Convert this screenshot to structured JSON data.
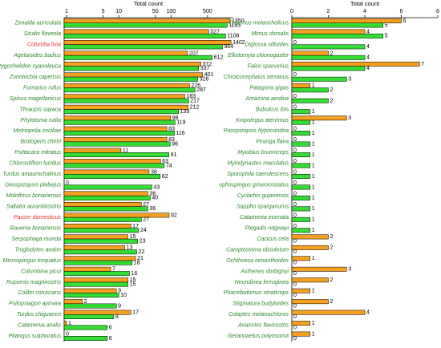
{
  "chart_data": [
    {
      "type": "bar",
      "orientation": "horizontal",
      "log_scale": true,
      "xlabel": "Total count",
      "xlim": [
        0.9,
        1500
      ],
      "xticks": [
        1,
        5,
        10,
        50,
        100,
        500
      ],
      "categories": [
        "Zenaida auriculata",
        "Sicalis flaveola",
        "Columba livia",
        "Agelaioides badius",
        "Pygochelidon cyanoleuca",
        "Zonotrichia capensis",
        "Furnarius rufus",
        "Spinus magellanicus",
        "Thraupis sayaca",
        "Phytotoma rutila",
        "Metriopelia ceciliae",
        "Brotogeris chiriri",
        "Psittacara mitratus",
        "Chlorostilbon lucidus",
        "Turdus amaurochalinus",
        "Geospizopsis plebejus",
        "Molothrus bonariensis",
        "Saltator aurantiirostris",
        "Passer domesticus",
        "Rauenia bonariensis",
        "Serpophaga munda",
        "Troglodytes aedon",
        "Microspingus torquatus",
        "Columbina picui",
        "Rupornis magnirostris",
        "Colibri coruscans",
        "Psilopsiagon aymara",
        "Turdus chiguanco",
        "Catamenia analis",
        "Pitangus sulphuratus"
      ],
      "label_colors": [
        "#2a8a2a",
        "#2a8a2a",
        "#e8302a",
        "#2a8a2a",
        "#2a8a2a",
        "#2a8a2a",
        "#2a8a2a",
        "#2a8a2a",
        "#2a8a2a",
        "#2a8a2a",
        "#2a8a2a",
        "#2a8a2a",
        "#2a8a2a",
        "#2a8a2a",
        "#2a8a2a",
        "#2a8a2a",
        "#2a8a2a",
        "#2a8a2a",
        "#e8302a",
        "#2a8a2a",
        "#2a8a2a",
        "#2a8a2a",
        "#2a8a2a",
        "#2a8a2a",
        "#2a8a2a",
        "#2a8a2a",
        "#2a8a2a",
        "#2a8a2a",
        "#2a8a2a",
        "#2a8a2a"
      ],
      "series": [
        {
          "color": "#f5a020",
          "values": [
            1350,
            527,
            1402,
            207,
            372,
            401,
            226,
            183,
            212,
            98,
            83,
            83,
            11,
            63,
            38,
            0,
            36,
            27,
            92,
            17,
            15,
            13,
            21,
            7,
            15,
            9,
            2,
            17,
            1,
            0
          ]
        },
        {
          "color": "#33dd33",
          "values": [
            1183,
            1106,
            964,
            612,
            337,
            326,
            287,
            217,
            139,
            119,
            116,
            96,
            91,
            74,
            62,
            43,
            40,
            36,
            27,
            24,
            23,
            22,
            18,
            16,
            15,
            10,
            9,
            8,
            6,
            6
          ]
        }
      ]
    },
    {
      "type": "bar",
      "orientation": "horizontal",
      "log_scale": false,
      "xlabel": "Total count",
      "xlim": [
        0,
        8
      ],
      "xticks": [
        0,
        2,
        4,
        6,
        8
      ],
      "categories": [
        "Tyrannus melancholicus",
        "Mimus dorsalis",
        "Diglossa sittoides",
        "Elliotomyia chionogaster",
        "Falco sparverius",
        "Chroicocephalus serranus",
        "Patagona gigas",
        "Amazona aestiva",
        "Bubulcus ibis",
        "Knipolegus aterrimus",
        "Poospizopsis hypocondria",
        "Piranga flava",
        "Myiobius brunniceps",
        "Myiodynastes maculatus",
        "Sporophila caerulescens",
        "ophospingus griseocristatus",
        "Cyclarhis gujanensis",
        "Sappho sparganurus",
        "Catamenia inornata",
        "Plegadis ridgwayi",
        "Cacicus cela",
        "Camptostoma obsoletum",
        "Ochthoeca oenanthoides",
        "Asthenes dorbignyi",
        "Hirundinea ferruginea",
        "Phacellodomus striaticeps",
        "Stigmatura budytoides",
        "Colaptes melanochloros",
        "Anairetes flavirostris",
        "Geranoaetus polyosoma"
      ],
      "label_colors": [
        "#2a8a2a",
        "#2a8a2a",
        "#2a8a2a",
        "#2a8a2a",
        "#2a8a2a",
        "#2a8a2a",
        "#2a8a2a",
        "#2a8a2a",
        "#2a8a2a",
        "#2a8a2a",
        "#2a8a2a",
        "#2a8a2a",
        "#2a8a2a",
        "#2a8a2a",
        "#2a8a2a",
        "#2a8a2a",
        "#2a8a2a",
        "#2a8a2a",
        "#2a8a2a",
        "#2a8a2a",
        "#2a8a2a",
        "#2a8a2a",
        "#2a8a2a",
        "#2a8a2a",
        "#2a8a2a",
        "#2a8a2a",
        "#2a8a2a",
        "#2a8a2a",
        "#2a8a2a",
        "#2a8a2a"
      ],
      "series": [
        {
          "color": "#f5a020",
          "values": [
            6,
            4,
            0,
            2,
            7,
            0,
            1,
            0,
            0,
            3,
            0,
            0,
            0,
            0,
            0,
            0,
            0,
            0,
            0,
            0,
            2,
            2,
            1,
            3,
            2,
            1,
            2,
            4,
            1,
            1
          ]
        },
        {
          "color": "#33dd33",
          "values": [
            5,
            5,
            4,
            4,
            4,
            3,
            2,
            2,
            1,
            1,
            1,
            1,
            1,
            1,
            1,
            1,
            1,
            1,
            1,
            1,
            0,
            0,
            0,
            0,
            0,
            0,
            0,
            0,
            0,
            0
          ]
        }
      ]
    }
  ]
}
